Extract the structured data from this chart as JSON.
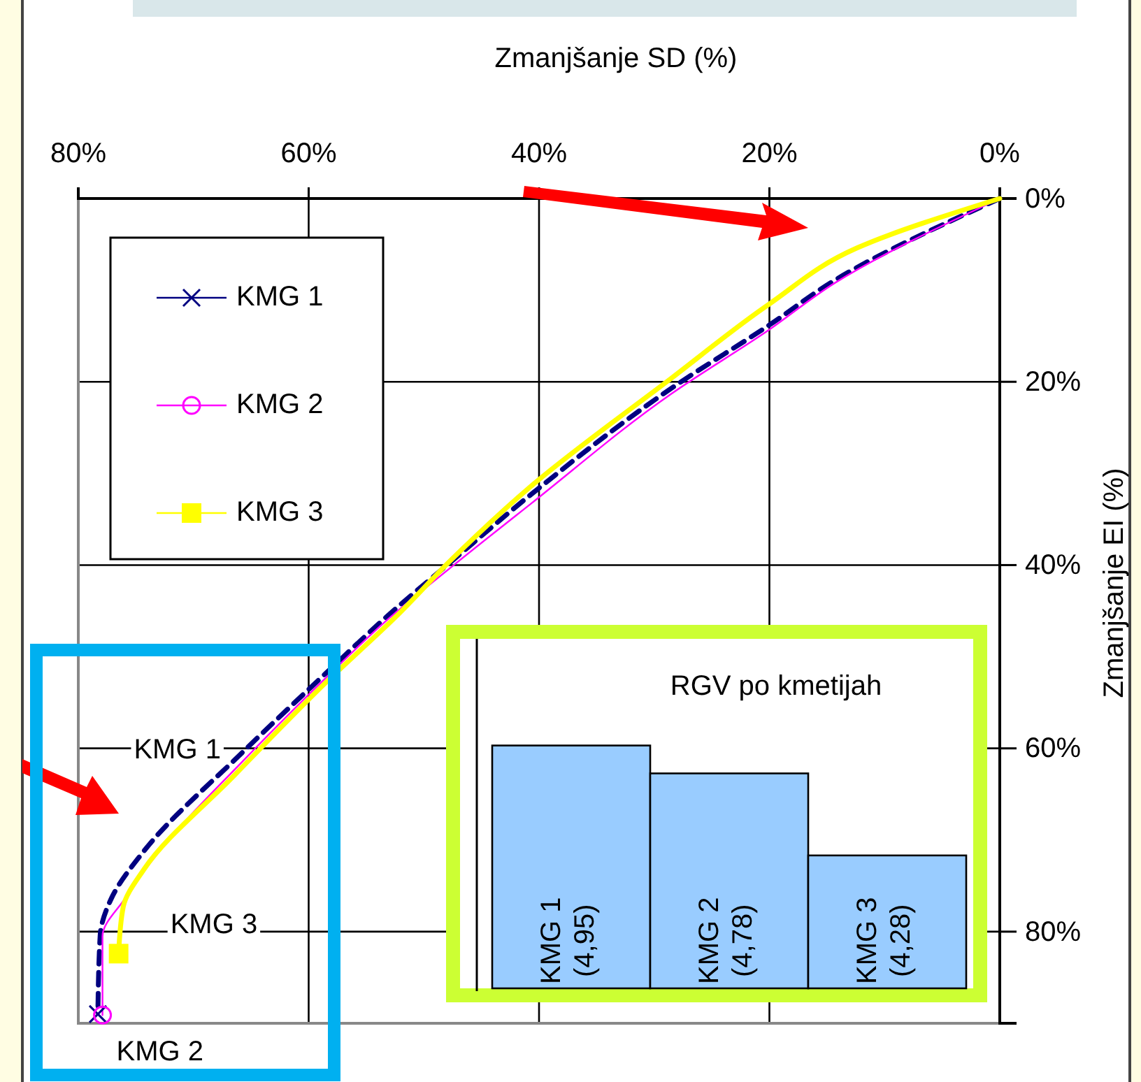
{
  "chart_data": [
    {
      "type": "line",
      "xlabel": "Zmanjšanje SD (%)",
      "ylabel": "Zmanjšanje EI (%)",
      "xlim": [
        80,
        0
      ],
      "ylim": [
        90,
        0
      ],
      "xticks": [
        {
          "value": 80,
          "label": "80%"
        },
        {
          "value": 60,
          "label": "60%"
        },
        {
          "value": 40,
          "label": "40%"
        },
        {
          "value": 20,
          "label": "20%"
        },
        {
          "value": 0,
          "label": "0%"
        }
      ],
      "yticks": [
        {
          "value": 0,
          "label": "0%"
        },
        {
          "value": 20,
          "label": "20%"
        },
        {
          "value": 40,
          "label": "40%"
        },
        {
          "value": 60,
          "label": "60%"
        },
        {
          "value": 80,
          "label": "80%"
        }
      ],
      "grid": true,
      "legend": "top left",
      "series": [
        {
          "type": "scatter",
          "color": "#000080",
          "marker": "cross",
          "x": [
            78.3
          ],
          "values": [
            89
          ]
        },
        {
          "type": "scatter",
          "color": "#ff00ff",
          "marker": "circle",
          "x": [
            77.9
          ],
          "values": [
            89.1
          ]
        },
        {
          "type": "scatter",
          "color": "#ffff00",
          "marker": "square",
          "x": [
            76.5
          ],
          "values": [
            82.4
          ]
        },
        {
          "name": "KMG 1",
          "color": "#000080",
          "line_style": "dashed",
          "x": [
            0,
            14.3,
            20,
            28.5,
            40.7,
            47.6,
            53.2,
            58.5,
            65.8,
            74.3,
            77.1,
            78.1,
            78.3
          ],
          "values": [
            0,
            8.9,
            13.8,
            20.7,
            32.3,
            39.6,
            45.6,
            51.8,
            60.5,
            71.2,
            76.3,
            80.4,
            89
          ]
        },
        {
          "name": "KMG 2",
          "color": "#ff00ff",
          "line_style": "solid",
          "x": [
            0,
            14.3,
            20,
            28.5,
            40.7,
            47.6,
            53.2,
            58.5,
            65.8,
            72.5,
            75.9,
            77.9,
            77.9
          ],
          "values": [
            0,
            9.2,
            14.3,
            21.3,
            33.3,
            40.2,
            46,
            52.3,
            61.5,
            70.5,
            76.3,
            80.5,
            89.1
          ]
        },
        {
          "name": "KMG 3",
          "color": "#ffff00",
          "line_style": "solid",
          "x": [
            0,
            12.4,
            20,
            28.5,
            40.7,
            47.6,
            52.4,
            58.5,
            66.5,
            74.3,
            76.1,
            76.5
          ],
          "values": [
            0,
            5.4,
            11.5,
            19.6,
            31.4,
            39.4,
            45.6,
            52.8,
            63,
            73.2,
            77.3,
            82.4
          ]
        }
      ],
      "annotations": [
        {
          "text": "KMG 1",
          "x": 65.8,
          "y": 60
        },
        {
          "text": "KMG 3",
          "x": 76.5,
          "y": 82.4
        },
        {
          "text": "KMG 2",
          "x": 77.9,
          "y": 89.1
        }
      ]
    },
    {
      "type": "bar",
      "title": "RGV po kmetijah",
      "ylim": [
        3.47,
        5.6
      ],
      "categories": [
        "KMG 1",
        "KMG 2",
        "KMG 3"
      ],
      "values": [
        4.95,
        4.78,
        4.28
      ],
      "value_labels": [
        "(4,95)",
        "(4,78)",
        "(4,28)"
      ],
      "color": "#99ccff"
    }
  ]
}
